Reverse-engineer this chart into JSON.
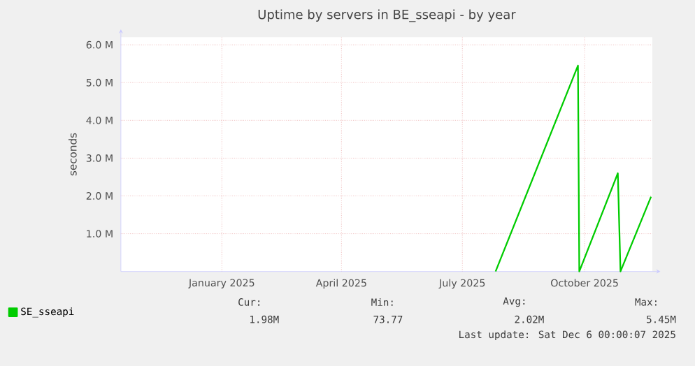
{
  "chart_data": {
    "type": "line",
    "title": "Uptime by servers in BE_sseapi - by year",
    "ylabel": "seconds",
    "x": [
      "2025-08-10",
      "2025-10-11",
      "2025-10-12",
      "2025-11-10",
      "2025-11-12",
      "2025-12-05"
    ],
    "series": [
      {
        "name": "SE_sseapi",
        "color": "#00cc00",
        "values": [
          0,
          5450000,
          0,
          2600000,
          0,
          1980000
        ]
      }
    ],
    "xlim": [
      "2024-11-01",
      "2025-12-06"
    ],
    "xticks": [
      {
        "value": "2025-01-16",
        "label": "January 2025"
      },
      {
        "value": "2025-04-16",
        "label": "April 2025"
      },
      {
        "value": "2025-07-16",
        "label": "July 2025"
      },
      {
        "value": "2025-10-16",
        "label": "October 2025"
      }
    ],
    "ylim": [
      0,
      6200000
    ],
    "yticks": [
      {
        "value": 1000000,
        "label": "1.0 M"
      },
      {
        "value": 2000000,
        "label": "2.0 M"
      },
      {
        "value": 3000000,
        "label": "3.0 M"
      },
      {
        "value": 4000000,
        "label": "4.0 M"
      },
      {
        "value": 5000000,
        "label": "5.0 M"
      },
      {
        "value": 6000000,
        "label": "6.0 M"
      }
    ],
    "grid": true,
    "legend": "bottom",
    "annotations": [
      "Cur:",
      "Min:",
      "Avg:",
      "Max:",
      "1.98M",
      "73.77",
      "2.02M",
      "5.45M",
      "Last update: Sat Dec  6 00:00:07 2025"
    ]
  }
}
